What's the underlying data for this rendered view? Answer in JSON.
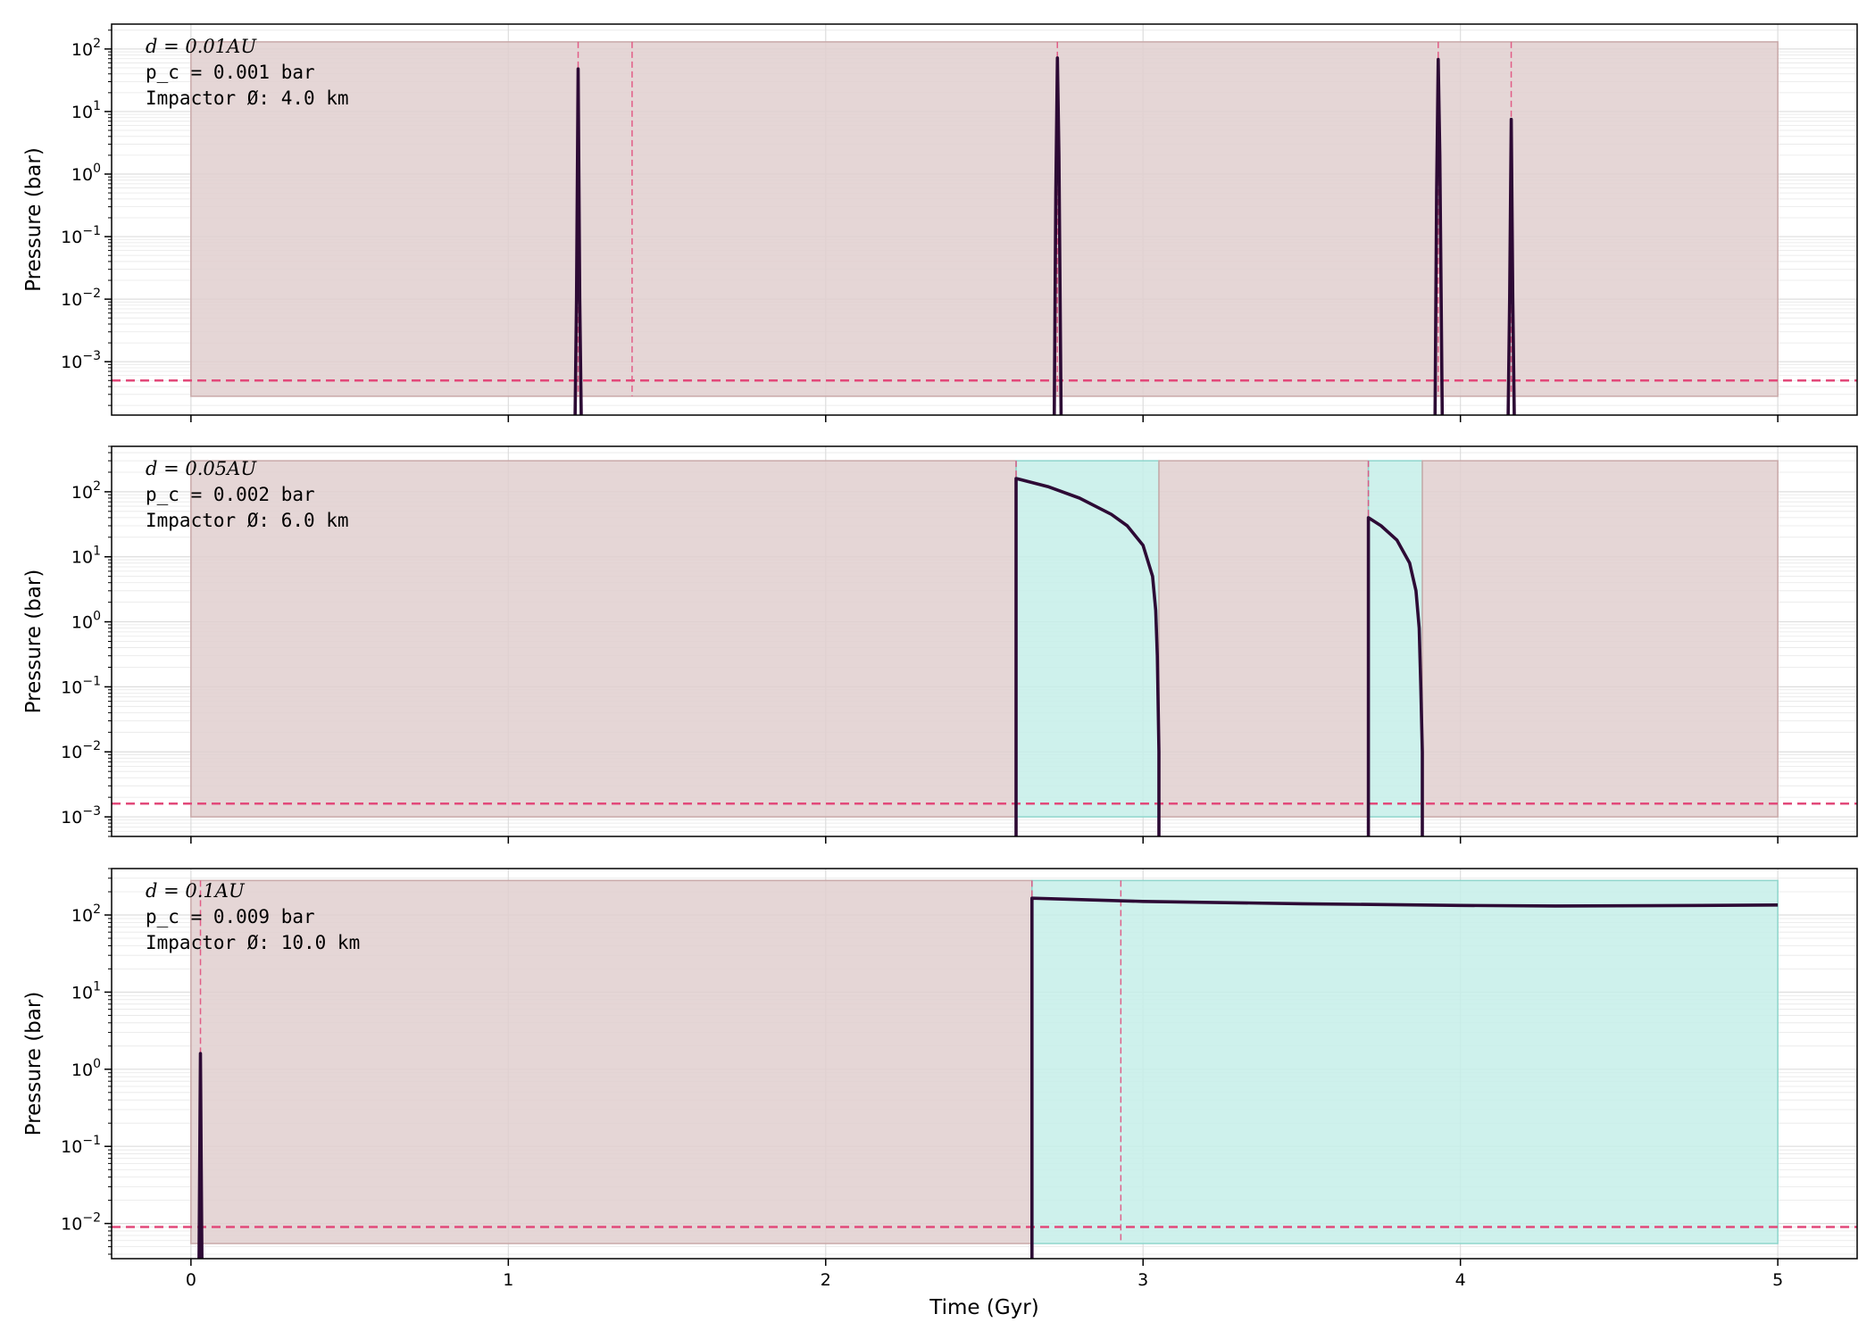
{
  "chart_data": {
    "type": "line",
    "xlabel": "Time (Gyr)",
    "x_ticks": [
      0,
      1,
      2,
      3,
      4,
      5
    ],
    "xlim": [
      -0.25,
      5.25
    ],
    "yscale": "log",
    "grid": true,
    "colors": {
      "line": "#2d0a35",
      "threshold": "#e2497a",
      "inactive_span": "#e0cfcf",
      "active_span": "#c6efe9",
      "grid": "#dddddd"
    },
    "panels": [
      {
        "ylabel": "Pressure (bar)",
        "ylim": [
          0.00014,
          250
        ],
        "y_ticks": [
          -3,
          -2,
          -1,
          0,
          1,
          2
        ],
        "annotation": {
          "d_label": "d = 0.01AU",
          "pc_label": "p_c = 0.001 bar",
          "impactor_label": "Impactor Ø: 4.0 km"
        },
        "threshold": 0.0005,
        "span_y": [
          0.00028,
          130
        ],
        "spans": [
          {
            "start": 0.0,
            "end": 5.0,
            "kind": "inactive"
          }
        ],
        "impact_lines": [
          1.22,
          1.39,
          2.73,
          3.93,
          4.16
        ],
        "series": [
          {
            "x": [
              1.21,
              1.215,
              1.22,
              1.225,
              1.23
            ],
            "y": [
              0.0001,
              0.01,
              48,
              0.01,
              0.0001
            ]
          },
          {
            "x": [
              2.72,
              2.725,
              2.73,
              2.735,
              2.742
            ],
            "y": [
              0.0001,
              0.5,
              72,
              2,
              0.0001
            ]
          },
          {
            "x": [
              3.92,
              3.925,
              3.93,
              3.935,
              3.943
            ],
            "y": [
              0.0001,
              0.5,
              68,
              2,
              0.0001
            ]
          },
          {
            "x": [
              4.15,
              4.155,
              4.16,
              4.165,
              4.17
            ],
            "y": [
              0.0001,
              0.01,
              7.5,
              0.01,
              0.0001
            ]
          }
        ]
      },
      {
        "ylabel": "Pressure (bar)",
        "ylim": [
          0.0005,
          500
        ],
        "y_ticks": [
          -3,
          -2,
          -1,
          0,
          1,
          2
        ],
        "annotation": {
          "d_label": "d = 0.05AU",
          "pc_label": "p_c = 0.002 bar",
          "impactor_label": "Impactor Ø: 6.0 km"
        },
        "threshold": 0.0016,
        "span_y": [
          0.001,
          300
        ],
        "spans": [
          {
            "start": 0.0,
            "end": 2.6,
            "kind": "inactive"
          },
          {
            "start": 2.6,
            "end": 3.05,
            "kind": "active"
          },
          {
            "start": 3.05,
            "end": 3.71,
            "kind": "inactive"
          },
          {
            "start": 3.71,
            "end": 3.88,
            "kind": "active"
          },
          {
            "start": 3.88,
            "end": 5.0,
            "kind": "inactive"
          }
        ],
        "impact_lines": [
          2.6,
          3.71
        ],
        "series": [
          {
            "x": [
              2.6,
              2.6,
              2.7,
              2.8,
              2.9,
              2.95,
              3.0,
              3.03,
              3.04,
              3.045,
              3.05,
              3.05
            ],
            "y": [
              0.0003,
              160,
              120,
              80,
              45,
              30,
              15,
              5,
              1.5,
              0.3,
              0.01,
              0.0003
            ]
          },
          {
            "x": [
              3.71,
              3.71,
              3.75,
              3.8,
              3.84,
              3.86,
              3.87,
              3.875,
              3.88,
              3.88
            ],
            "y": [
              0.0003,
              40,
              30,
              18,
              8,
              3,
              0.8,
              0.1,
              0.01,
              0.0003
            ]
          }
        ]
      },
      {
        "ylabel": "Pressure (bar)",
        "ylim": [
          0.0035,
          400
        ],
        "y_ticks": [
          -2,
          -1,
          0,
          1,
          2
        ],
        "annotation": {
          "d_label": "d = 0.1AU",
          "pc_label": "p_c = 0.009 bar",
          "impactor_label": "Impactor Ø: 10.0 km"
        },
        "threshold": 0.009,
        "span_y": [
          0.0055,
          280
        ],
        "spans": [
          {
            "start": 0.0,
            "end": 2.65,
            "kind": "inactive"
          },
          {
            "start": 2.65,
            "end": 5.0,
            "kind": "active"
          }
        ],
        "impact_lines": [
          0.03,
          2.65,
          2.93
        ],
        "series": [
          {
            "x": [
              0.025,
              0.028,
              0.03,
              0.032,
              0.035
            ],
            "y": [
              0.002,
              0.1,
              1.6,
              0.1,
              0.002
            ]
          },
          {
            "x": [
              2.65,
              2.65,
              3.0,
              3.5,
              4.0,
              4.3,
              4.6,
              5.0
            ],
            "y": [
              0.002,
              165,
              150,
              140,
              133,
              131,
              132,
              135
            ]
          }
        ]
      }
    ]
  }
}
